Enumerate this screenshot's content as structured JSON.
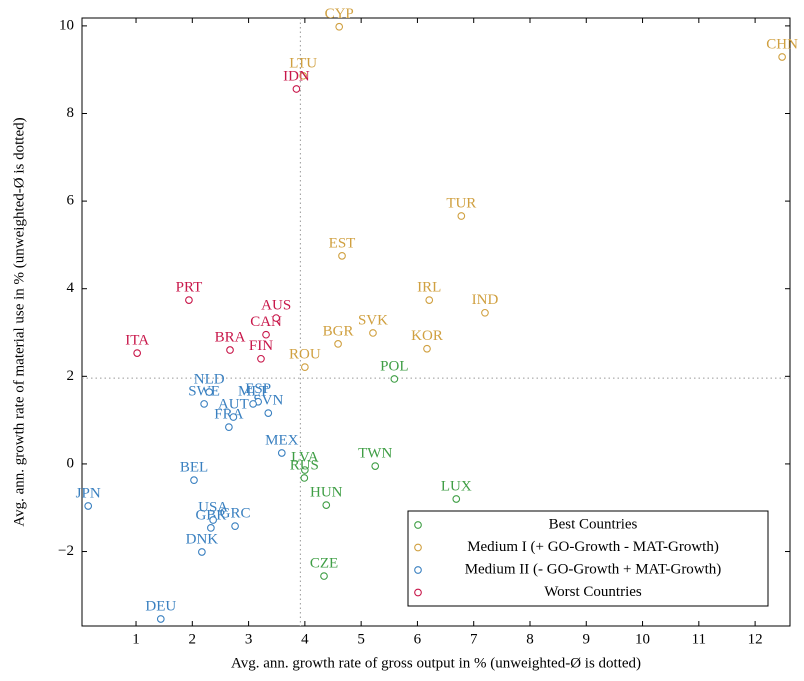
{
  "chart_data": {
    "type": "scatter",
    "x_label": "Avg. ann. growth rate of gross output in % (unweighted-Ø is dotted)",
    "y_label": "Avg. ann. growth rate of material use in % (unweighted-Ø is dotted)",
    "xlim": [
      0.04,
      12.62
    ],
    "ylim": [
      -3.7,
      10.18
    ],
    "xticks": [
      1,
      2,
      3,
      4,
      5,
      6,
      7,
      8,
      9,
      10,
      11,
      12
    ],
    "yticks": [
      {
        "value": -2,
        "label": "−2"
      },
      0,
      2,
      4,
      6,
      8,
      10
    ],
    "reference_lines": {
      "x": 3.92,
      "y": 1.96
    },
    "legend_position": "lower right",
    "series": [
      {
        "name": "Best Countries",
        "color": "#3f9e45",
        "labels": [
          "POL",
          "TWN",
          "LUX",
          "LVA",
          "RUS",
          "HUN",
          "CZE"
        ],
        "x": [
          5.59,
          5.25,
          6.69,
          4.0,
          3.99,
          4.38,
          4.34
        ],
        "values": [
          1.94,
          -0.05,
          -0.8,
          -0.14,
          -0.32,
          -0.94,
          -2.56
        ]
      },
      {
        "name": "Medium I (+ GO-Growth - MAT-Growth)",
        "color": "#d0a040",
        "labels": [
          "CYP",
          "CHN",
          "LTU",
          "TUR",
          "EST",
          "IRL",
          "IND",
          "SVK",
          "BGR",
          "KOR",
          "ROU"
        ],
        "x": [
          4.61,
          12.48,
          3.97,
          6.78,
          4.66,
          6.21,
          7.2,
          5.21,
          4.59,
          6.17,
          4.0
        ],
        "values": [
          9.98,
          9.29,
          8.86,
          5.66,
          4.75,
          3.74,
          3.45,
          2.99,
          2.74,
          2.63,
          2.21
        ]
      },
      {
        "name": "Medium II (- GO-Growth + MAT-Growth)",
        "color": "#3a80c0",
        "labels": [
          "JPN",
          "DEU",
          "DNK",
          "GBR",
          "USA",
          "GRC",
          "BEL",
          "MEX",
          "FRA",
          "AUT",
          "SWE",
          "NLD",
          "SVN",
          "ESP",
          "MLT"
        ],
        "x": [
          0.15,
          1.44,
          2.17,
          2.33,
          2.37,
          2.76,
          2.03,
          3.59,
          2.65,
          2.73,
          2.21,
          2.3,
          3.35,
          3.17,
          3.08
        ],
        "values": [
          -0.96,
          -3.54,
          -2.01,
          -1.46,
          -1.28,
          -1.42,
          -0.37,
          0.25,
          0.84,
          1.07,
          1.37,
          1.64,
          1.16,
          1.42,
          1.37
        ]
      },
      {
        "name": "Worst Countries",
        "color": "#c8174a",
        "labels": [
          "IDN",
          "PRT",
          "ITA",
          "CAN",
          "AUS",
          "BRA",
          "FIN"
        ],
        "x": [
          3.85,
          1.94,
          1.02,
          3.31,
          3.49,
          2.67,
          3.22
        ],
        "values": [
          8.56,
          3.74,
          2.53,
          2.95,
          3.33,
          2.6,
          2.4
        ]
      }
    ]
  }
}
